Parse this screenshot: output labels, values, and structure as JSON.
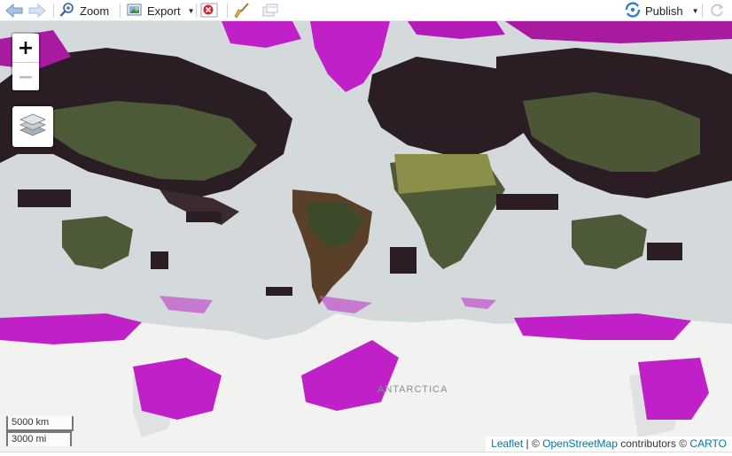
{
  "toolbar": {
    "zoom_label": "Zoom",
    "export_label": "Export",
    "publish_label": "Publish"
  },
  "map": {
    "zoom_in": "+",
    "zoom_out": "−",
    "antarctica_label": "ANTARCTICA",
    "scale_km": "5000 km",
    "scale_mi": "3000 mi",
    "attribution": {
      "leaflet": "Leaflet",
      "sep": " | © ",
      "osm": "OpenStreetMap",
      "contrib": " contributors © ",
      "carto": "CARTO"
    },
    "colors": {
      "ocean": "#d4dadc",
      "land_dark": "#2a1d24",
      "land_green": "#4d5a38",
      "polar": "#c020c8",
      "antarctica": "#f2f2f0"
    }
  }
}
